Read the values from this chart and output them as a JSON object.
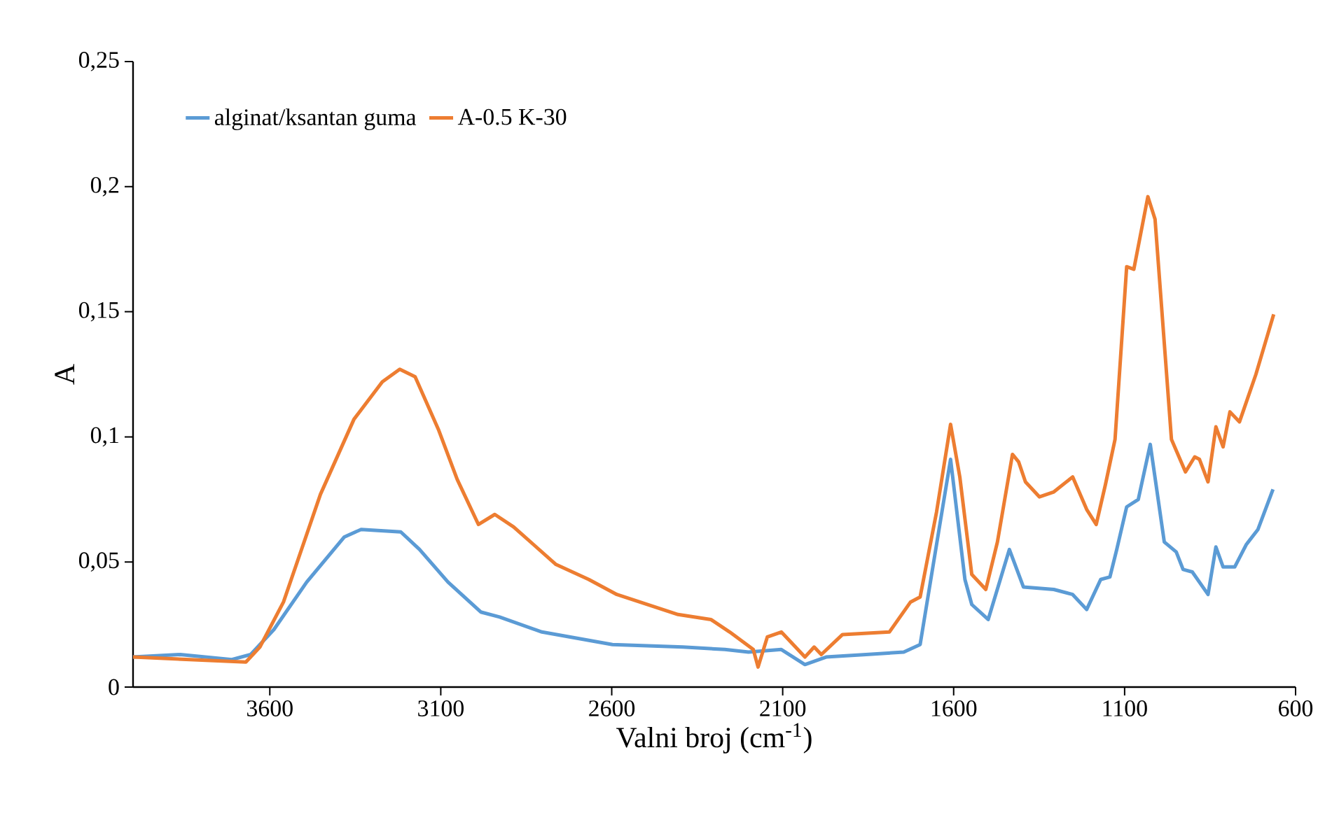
{
  "chart_data": {
    "type": "line",
    "xlabel": "Valni broj (cm$^{-1}$)",
    "ylabel": "A",
    "xlim": [
      4000,
      600
    ],
    "xticks": [
      3600,
      3100,
      2600,
      2100,
      1600,
      1100,
      600
    ],
    "ylim": [
      0,
      0.25
    ],
    "yticks": [
      0,
      {
        "value": 0.05,
        "label": "0,05"
      },
      {
        "value": 0.1,
        "label": "0,1"
      },
      {
        "value": 0.15,
        "label": "0,15"
      },
      {
        "value": 0.2,
        "label": "0,2"
      },
      {
        "value": 0.25,
        "label": "0,25"
      }
    ],
    "grid": false,
    "legend": "top left",
    "marker": "none",
    "line_style": "solid",
    "series": [
      {
        "name": "alginat/ksantan guma",
        "color": "#5b9bd5",
        "x": [
          4000,
          3862,
          3711,
          3656,
          3588,
          3492,
          3382,
          3333,
          3217,
          3162,
          3079,
          2983,
          2928,
          2804,
          2598,
          2392,
          2269,
          2200,
          2104,
          2035,
          1973,
          1856,
          1746,
          1698,
          1650,
          1609,
          1567,
          1547,
          1499,
          1437,
          1396,
          1307,
          1252,
          1211,
          1170,
          1143,
          1123,
          1094,
          1060,
          1025,
          984,
          949,
          929,
          902,
          856,
          833,
          812,
          778,
          744,
          710,
          666
        ],
        "values": [
          0.012,
          0.013,
          0.011,
          0.013,
          0.023,
          0.042,
          0.06,
          0.063,
          0.062,
          0.055,
          0.042,
          0.03,
          0.028,
          0.022,
          0.017,
          0.016,
          0.015,
          0.014,
          0.015,
          0.009,
          0.012,
          0.013,
          0.014,
          0.017,
          0.057,
          0.091,
          0.043,
          0.033,
          0.027,
          0.055,
          0.04,
          0.039,
          0.037,
          0.031,
          0.043,
          0.044,
          0.055,
          0.072,
          0.075,
          0.097,
          0.058,
          0.054,
          0.047,
          0.046,
          0.037,
          0.056,
          0.048,
          0.048,
          0.057,
          0.063,
          0.079
        ]
      },
      {
        "name": "A-0.5 K-30",
        "color": "#ed7d31",
        "x": [
          4000,
          3670,
          3629,
          3560,
          3452,
          3354,
          3271,
          3220,
          3175,
          3107,
          3052,
          2990,
          2942,
          2887,
          2763,
          2667,
          2585,
          2406,
          2310,
          2255,
          2186,
          2172,
          2145,
          2104,
          2035,
          2008,
          1987,
          1925,
          1788,
          1726,
          1698,
          1650,
          1609,
          1582,
          1547,
          1506,
          1472,
          1428,
          1410,
          1390,
          1349,
          1307,
          1252,
          1211,
          1183,
          1156,
          1128,
          1094,
          1073,
          1032,
          1011,
          963,
          922,
          895,
          881,
          856,
          833,
          812,
          792,
          764,
          716,
          664
        ],
        "values": [
          0.012,
          0.01,
          0.016,
          0.034,
          0.077,
          0.107,
          0.122,
          0.127,
          0.124,
          0.103,
          0.083,
          0.065,
          0.069,
          0.064,
          0.049,
          0.043,
          0.037,
          0.029,
          0.027,
          0.022,
          0.015,
          0.008,
          0.02,
          0.022,
          0.012,
          0.016,
          0.013,
          0.021,
          0.022,
          0.034,
          0.036,
          0.07,
          0.105,
          0.084,
          0.045,
          0.039,
          0.058,
          0.093,
          0.09,
          0.082,
          0.076,
          0.078,
          0.084,
          0.071,
          0.065,
          0.081,
          0.099,
          0.168,
          0.167,
          0.196,
          0.187,
          0.099,
          0.086,
          0.092,
          0.091,
          0.082,
          0.104,
          0.096,
          0.11,
          0.106,
          0.125,
          0.149
        ]
      }
    ]
  }
}
